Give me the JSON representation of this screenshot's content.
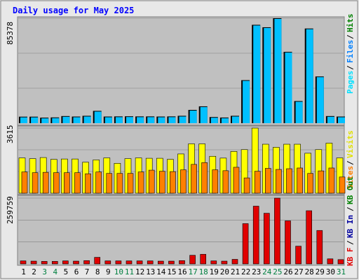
{
  "title": "Daily usage for May 2025",
  "colors": {
    "background": "#e8e8e8",
    "plot_bg": "#c0c0c0",
    "title": "#0000ff",
    "hits": "#00c0ff",
    "files": "#0080ff",
    "pages": "#00e0ff",
    "visits": "#ffff00",
    "sites": "#ff8000",
    "kbin": "#0000a0",
    "kbout": "#008000",
    "kbf": "#e00000",
    "weekday": "#000000",
    "weekend": "#008040"
  },
  "chart_data": [
    {
      "type": "bar",
      "panel": "top",
      "y_max_label": "85378",
      "right_legend": [
        "Pages",
        "Files",
        "Hits"
      ],
      "series": [
        {
          "name": "Pages",
          "values": [
            5300,
            5300,
            4500,
            4700,
            5800,
            5400,
            6000,
            10000,
            5400,
            5500,
            5600,
            5500,
            5500,
            5400,
            5500,
            6000,
            10800,
            13700,
            5000,
            4600,
            6000,
            35000,
            80000,
            78000,
            85378,
            58000,
            18000,
            77000,
            38000,
            5800,
            5400
          ]
        },
        {
          "name": "Files",
          "values": [
            5300,
            5300,
            4500,
            4700,
            5800,
            5400,
            6000,
            10000,
            5400,
            5500,
            5600,
            5500,
            5500,
            5400,
            5500,
            6000,
            10800,
            13700,
            5000,
            4600,
            6000,
            35000,
            80000,
            78000,
            85378,
            58000,
            18000,
            77000,
            38000,
            5800,
            5400
          ]
        },
        {
          "name": "Hits",
          "values": [
            5300,
            5300,
            4500,
            4700,
            5800,
            5400,
            6000,
            10000,
            5400,
            5500,
            5600,
            5500,
            5500,
            5400,
            5500,
            6000,
            10800,
            13700,
            5000,
            4600,
            6000,
            35000,
            80000,
            78000,
            85378,
            58000,
            18000,
            77000,
            38000,
            5800,
            5400
          ]
        }
      ]
    },
    {
      "type": "bar",
      "panel": "middle",
      "y_max_label": "3615",
      "right_legend": [
        "Sites",
        "/",
        "Visits"
      ],
      "series": [
        {
          "name": "Visits",
          "values": [
            1960,
            1920,
            1980,
            1880,
            1900,
            1900,
            1720,
            1850,
            1960,
            1660,
            1920,
            1960,
            1940,
            1940,
            1880,
            2180,
            2740,
            2740,
            2050,
            1950,
            2320,
            2420,
            3615,
            2720,
            2550,
            2720,
            2720,
            2220,
            2420,
            2780,
            1960
          ]
        },
        {
          "name": "Sites",
          "values": [
            1180,
            1140,
            1160,
            1140,
            1140,
            1140,
            1080,
            1180,
            1100,
            1100,
            1100,
            1180,
            1280,
            1220,
            1200,
            1300,
            1600,
            1700,
            1300,
            1250,
            1440,
            850,
            1220,
            1380,
            1320,
            1360,
            1400,
            1100,
            1240,
            1400,
            900
          ]
        }
      ]
    },
    {
      "type": "bar",
      "panel": "bottom",
      "y_max_label": "259759",
      "right_legend": [
        "KB F",
        "/",
        "KB In",
        "/",
        "KB Out"
      ],
      "series": [
        {
          "name": "KB F",
          "values": [
            12000,
            11000,
            10000,
            10000,
            12000,
            11000,
            13000,
            26000,
            12000,
            12000,
            12000,
            12000,
            12000,
            11000,
            11000,
            13000,
            34000,
            38000,
            12000,
            11000,
            18000,
            159000,
            228000,
            200000,
            259759,
            170000,
            70000,
            210000,
            132000,
            20000,
            17000
          ]
        }
      ]
    }
  ],
  "days": [
    {
      "label": "1",
      "weekend": false
    },
    {
      "label": "2",
      "weekend": false
    },
    {
      "label": "3",
      "weekend": true
    },
    {
      "label": "4",
      "weekend": true
    },
    {
      "label": "5",
      "weekend": false
    },
    {
      "label": "6",
      "weekend": false
    },
    {
      "label": "7",
      "weekend": false
    },
    {
      "label": "8",
      "weekend": false
    },
    {
      "label": "9",
      "weekend": false
    },
    {
      "label": "10",
      "weekend": true
    },
    {
      "label": "11",
      "weekend": true
    },
    {
      "label": "12",
      "weekend": false
    },
    {
      "label": "13",
      "weekend": false
    },
    {
      "label": "14",
      "weekend": false
    },
    {
      "label": "15",
      "weekend": false
    },
    {
      "label": "16",
      "weekend": false
    },
    {
      "label": "17",
      "weekend": true
    },
    {
      "label": "18",
      "weekend": true
    },
    {
      "label": "19",
      "weekend": false
    },
    {
      "label": "20",
      "weekend": false
    },
    {
      "label": "21",
      "weekend": false
    },
    {
      "label": "22",
      "weekend": false
    },
    {
      "label": "23",
      "weekend": false
    },
    {
      "label": "24",
      "weekend": true
    },
    {
      "label": "25",
      "weekend": true
    },
    {
      "label": "26",
      "weekend": false
    },
    {
      "label": "27",
      "weekend": false
    },
    {
      "label": "28",
      "weekend": false
    },
    {
      "label": "29",
      "weekend": false
    },
    {
      "label": "30",
      "weekend": false
    },
    {
      "label": "31",
      "weekend": true
    }
  ]
}
